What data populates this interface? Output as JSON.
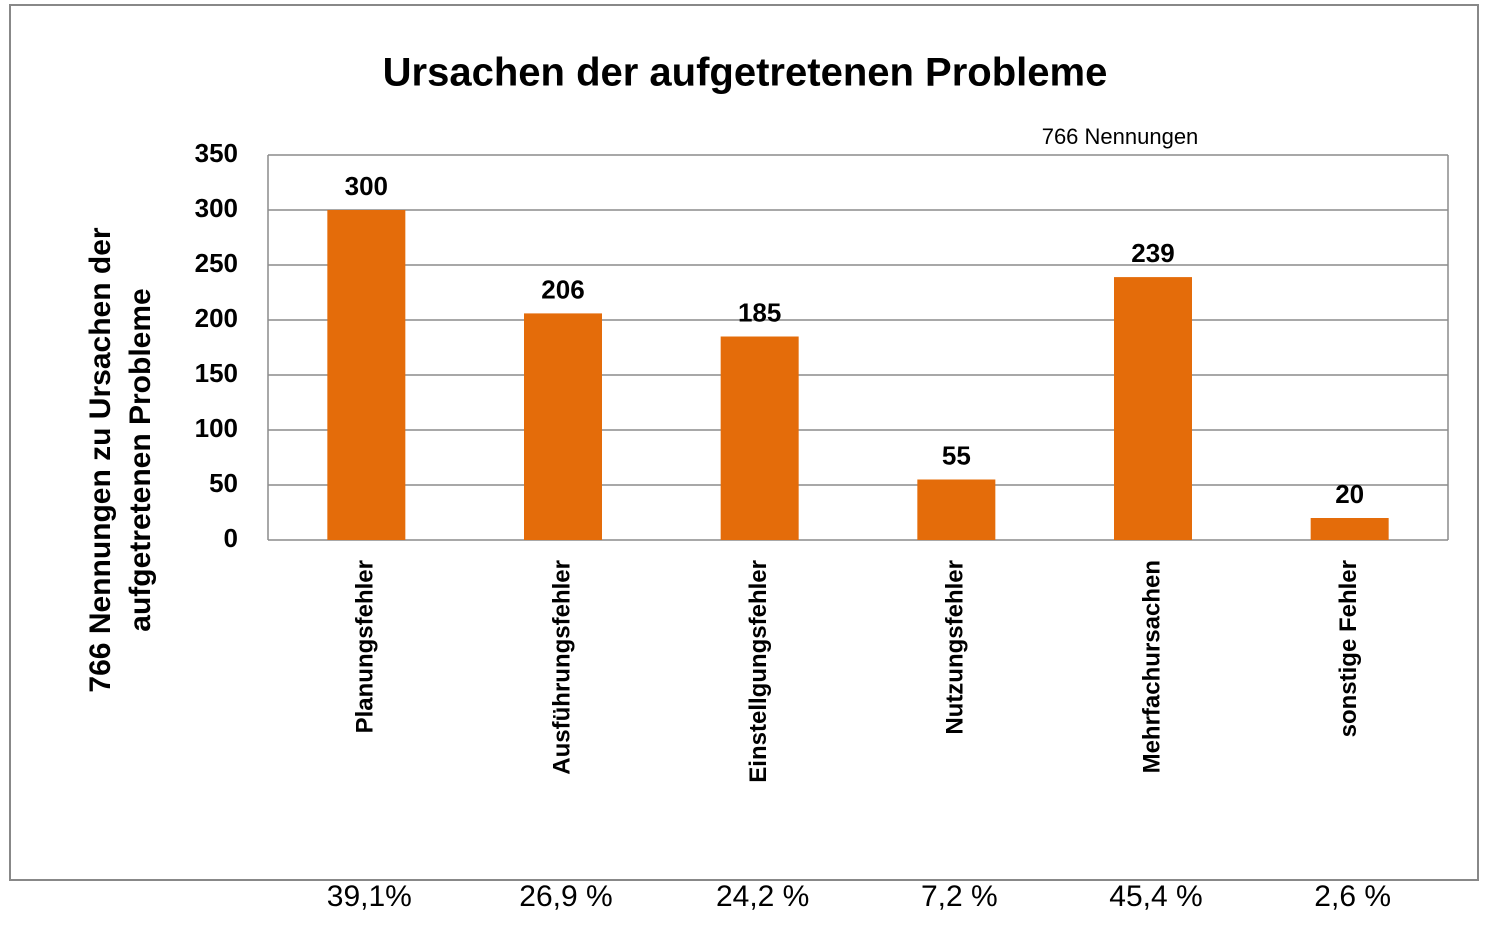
{
  "chart_data": {
    "type": "bar",
    "title": "Ursachen der aufgetretenen Probleme",
    "annotation": "766 Nennungen",
    "ylabel": [
      "766 Nennungen zu Ursachen der",
      "aufgetretenen Probleme"
    ],
    "categories": [
      "Planungsfehler",
      "Ausführungsfehler",
      "Einstellgungsfehler",
      "Nutzungsfehler",
      "Mehrfachursachen",
      "sonstige Fehler"
    ],
    "values": [
      300,
      206,
      185,
      55,
      239,
      20
    ],
    "percent_labels": [
      "39,1%",
      "26,9 %",
      "24,2 %",
      "7,2 %",
      "45,4 %",
      "2,6 %"
    ],
    "color": "#e46c0a",
    "ylim": [
      0,
      350
    ],
    "yticks": [
      0,
      50,
      100,
      150,
      200,
      250,
      300,
      350
    ],
    "grid": true
  }
}
